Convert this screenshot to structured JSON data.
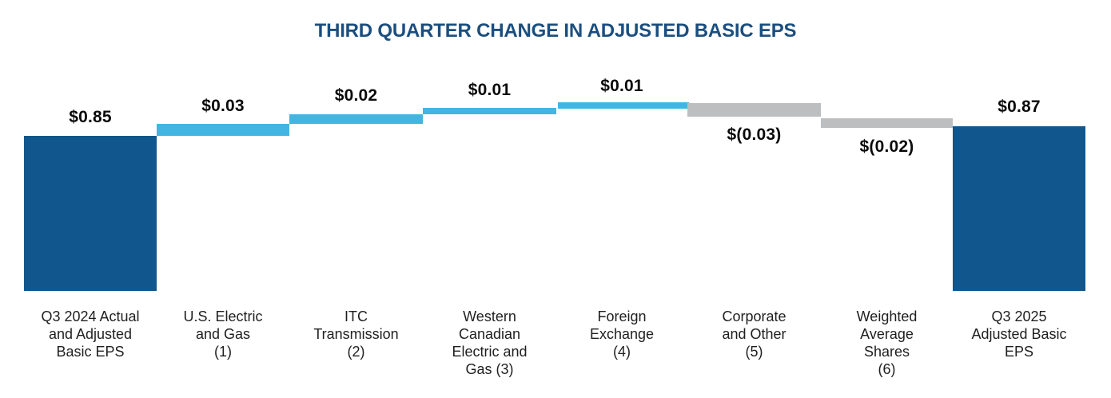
{
  "page": {
    "background": "#FFFFFF"
  },
  "chart_data": {
    "type": "waterfall",
    "title": "THIRD QUARTER CHANGE IN ADJUSTED BASIC EPS",
    "title_color": "#1B4E7E",
    "baseline": 0,
    "start_value": 0.85,
    "end_value": 0.87,
    "grid": false,
    "legend": false,
    "colors": {
      "total": "#11568C",
      "increase": "#41B6E2",
      "decrease": "#BCBEC0"
    },
    "steps": [
      {
        "name": "Q3 2024 Actual and Adjusted Basic EPS",
        "axis_label": "Q3 2024 Actual\nand Adjusted\nBasic EPS",
        "value": 0.85,
        "display": "$0.85",
        "role": "total"
      },
      {
        "name": "U.S. Electric and Gas",
        "axis_label": "U.S. Electric\nand Gas\n(1)",
        "value": 0.03,
        "display": "$0.03",
        "role": "increase"
      },
      {
        "name": "ITC Transmission",
        "axis_label": "ITC\nTransmission\n(2)",
        "value": 0.02,
        "display": "$0.02",
        "role": "increase"
      },
      {
        "name": "Western Canadian Electric and Gas",
        "axis_label": "Western\nCanadian\nElectric and\nGas (3)",
        "value": 0.01,
        "display": "$0.01",
        "role": "increase"
      },
      {
        "name": "Foreign Exchange",
        "axis_label": "Foreign\nExchange\n(4)",
        "value": 0.01,
        "display": "$0.01",
        "role": "increase"
      },
      {
        "name": "Corporate and Other",
        "axis_label": "Corporate\nand Other\n(5)",
        "value": -0.03,
        "display": "$(0.03)",
        "role": "decrease"
      },
      {
        "name": "Weighted Average Shares",
        "axis_label": "Weighted\nAverage\nShares\n(6)",
        "value": -0.02,
        "display": "$(0.02)",
        "role": "decrease"
      },
      {
        "name": "Q3 2025 Adjusted Basic EPS",
        "axis_label": "Q3 2025\nAdjusted Basic\nEPS",
        "value": 0.87,
        "display": "$0.87",
        "role": "total"
      }
    ]
  }
}
